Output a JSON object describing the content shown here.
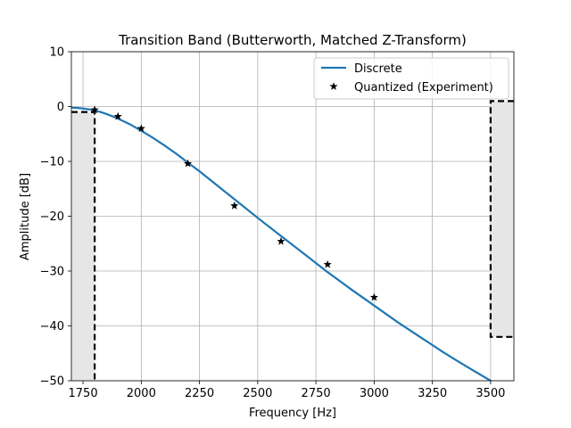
{
  "chart_data": {
    "type": "line",
    "title": "Transition Band (Butterworth, Matched Z-Transform)",
    "xlabel": "Frequency [Hz]",
    "ylabel": "Amplitude [dB]",
    "xlim": [
      1700,
      3600
    ],
    "ylim": [
      -50,
      10
    ],
    "xticks": [
      1750,
      2000,
      2250,
      2500,
      2750,
      3000,
      3250,
      3500
    ],
    "yticks": [
      -50,
      -40,
      -30,
      -20,
      -10,
      0,
      10
    ],
    "grid": true,
    "legend_position": "top-right",
    "colors": {
      "discrete": "#1f77b4",
      "experiment": "#000000",
      "mask_fill": "#e6e6e6",
      "mask_edge": "#000000"
    },
    "series": [
      {
        "name": "Discrete",
        "kind": "line",
        "x": [
          1700,
          1725,
          1750,
          1775,
          1800,
          1825,
          1850,
          1875,
          1900,
          1950,
          2000,
          2050,
          2100,
          2150,
          2200,
          2250,
          2300,
          2350,
          2400,
          2450,
          2500,
          2600,
          2700,
          2800,
          2900,
          3000,
          3100,
          3200,
          3300,
          3400,
          3500,
          3520
        ],
        "y": [
          -0.2,
          -0.25,
          -0.35,
          -0.5,
          -0.75,
          -1.0,
          -1.35,
          -1.75,
          -2.2,
          -3.2,
          -4.4,
          -5.7,
          -7.1,
          -8.6,
          -10.2,
          -11.8,
          -13.5,
          -15.2,
          -16.9,
          -18.6,
          -20.3,
          -23.6,
          -26.9,
          -30.2,
          -33.3,
          -36.3,
          -39.3,
          -42.1,
          -44.9,
          -47.5,
          -50.0,
          -50.5
        ]
      },
      {
        "name": "Quantized (Experiment)",
        "kind": "scatter",
        "marker": "star",
        "x": [
          1800,
          1900,
          2000,
          2200,
          2400,
          2600,
          2800,
          3000
        ],
        "y": [
          -0.6,
          -1.8,
          -4.0,
          -10.4,
          -18.1,
          -24.6,
          -28.8,
          -34.8
        ]
      }
    ],
    "masks": [
      {
        "x0": 1700,
        "x1": 1800,
        "y_edge": -1
      },
      {
        "x0": 3500,
        "x1": 3600,
        "y_top": 1,
        "y_bottom": -42
      }
    ]
  }
}
